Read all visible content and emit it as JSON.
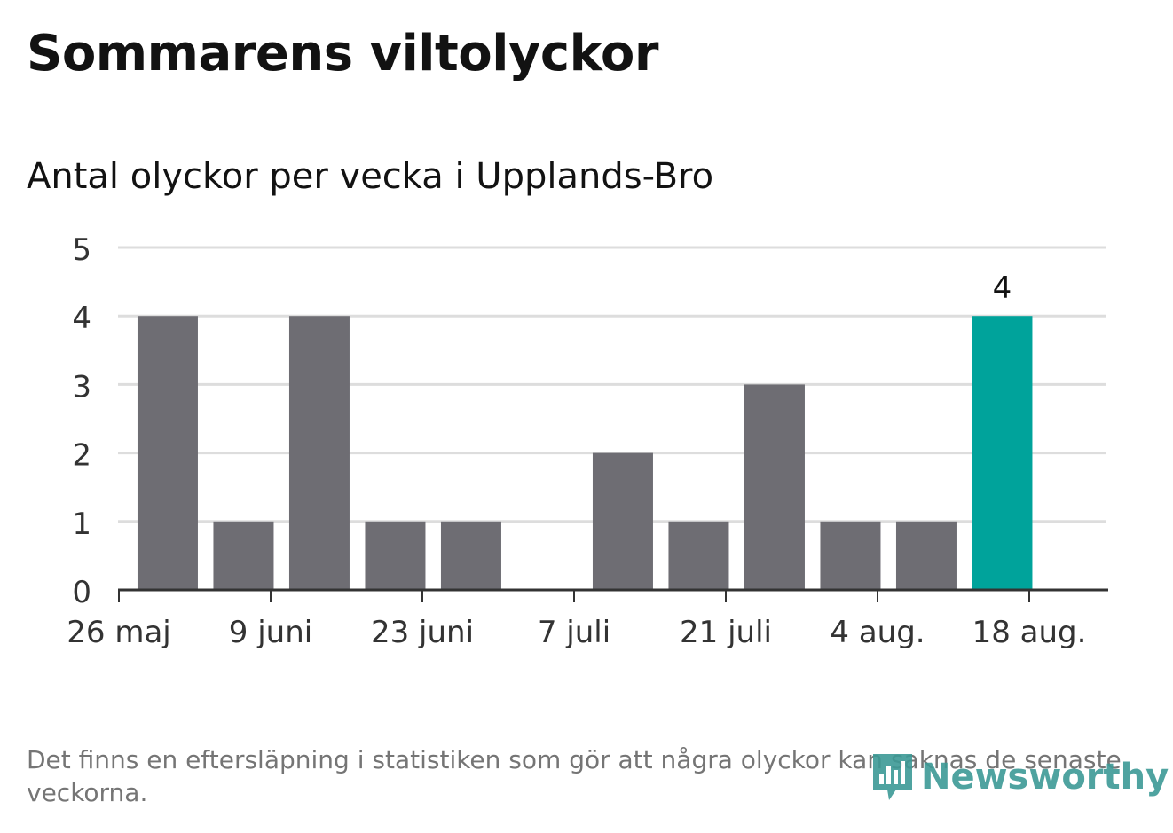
{
  "header": {
    "title": "Sommarens viltolyckor",
    "subtitle": "Antal olyckor per vecka i Upplands-Bro"
  },
  "footer": {
    "note": "Det finns en eftersläpning i statistiken som gör att några olyckor kan saknas de senaste veckorna.",
    "brand": "Newsworthy",
    "brand_icon": "bar-chart-speech-bubble-icon"
  },
  "colors": {
    "bar": "#6e6d73",
    "highlight": "#00a39b",
    "grid": "#dddddd",
    "axis": "#333333",
    "brand": "#3d9a96"
  },
  "chart_data": {
    "type": "bar",
    "weeks": [
      "2019-05-27",
      "2019-06-03",
      "2019-06-10",
      "2019-06-17",
      "2019-06-24",
      "2019-07-01",
      "2019-07-08",
      "2019-07-15",
      "2019-07-22",
      "2019-07-29",
      "2019-08-05",
      "2019-08-12"
    ],
    "values": [
      4,
      1,
      4,
      1,
      1,
      0,
      2,
      1,
      3,
      1,
      1,
      4
    ],
    "highlight_index": 11,
    "highlight_label": "4",
    "ylim": [
      0,
      5
    ],
    "yticks": [
      "0",
      "1",
      "2",
      "3",
      "4",
      "5"
    ],
    "xticks": [
      {
        "date": "2019-05-26",
        "label": "26 maj"
      },
      {
        "date": "2019-06-09",
        "label": "9 juni"
      },
      {
        "date": "2019-06-23",
        "label": "23 juni"
      },
      {
        "date": "2019-07-07",
        "label": "7 juli"
      },
      {
        "date": "2019-07-21",
        "label": "21 juli"
      },
      {
        "date": "2019-08-04",
        "label": "4 aug."
      },
      {
        "date": "2019-08-18",
        "label": "18 aug."
      }
    ],
    "grid": true
  }
}
